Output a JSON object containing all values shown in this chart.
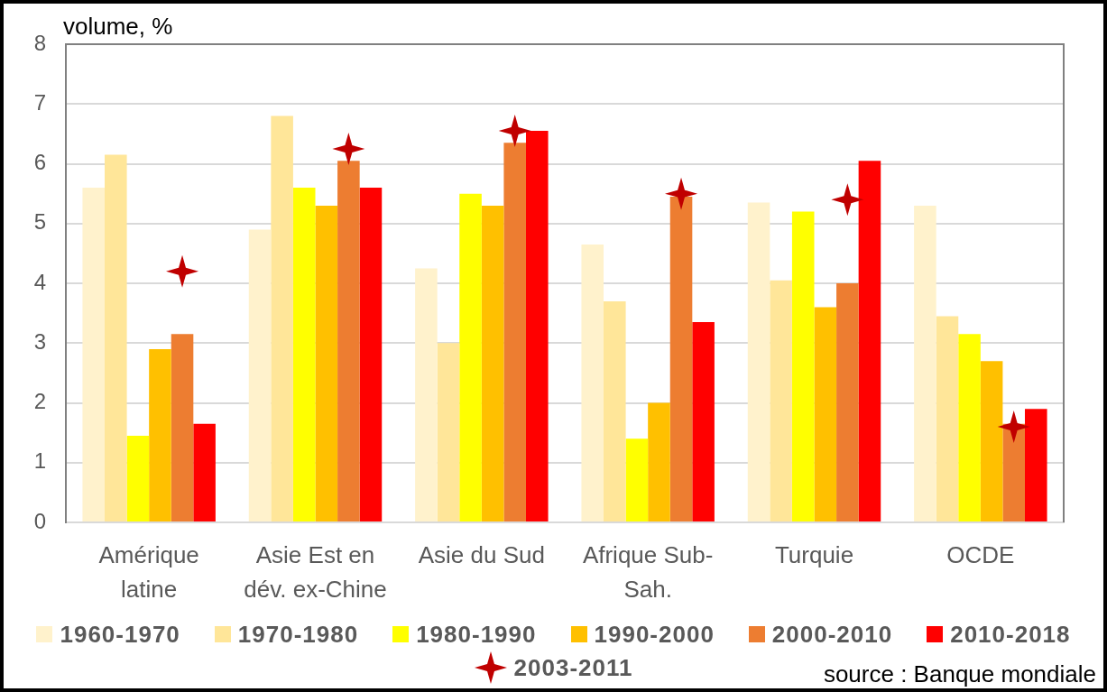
{
  "chart_data": {
    "type": "bar",
    "ylabel": "volume, %",
    "categories": [
      "Amérique latine",
      "Asie Est en dév. ex-Chine",
      "Asie du Sud",
      "Afrique Sub-Sah.",
      "Turquie",
      "OCDE"
    ],
    "series": [
      {
        "name": "1960-1970",
        "color": "#fff2cc",
        "values": [
          5.6,
          4.9,
          4.25,
          4.65,
          5.35,
          5.3
        ]
      },
      {
        "name": "1970-1980",
        "color": "#ffe699",
        "values": [
          6.15,
          6.8,
          3.0,
          3.7,
          4.05,
          3.45
        ]
      },
      {
        "name": "1980-1990",
        "color": "#ffff00",
        "values": [
          1.45,
          5.6,
          5.5,
          1.4,
          5.2,
          3.15
        ]
      },
      {
        "name": "1990-2000",
        "color": "#ffc000",
        "values": [
          2.9,
          5.3,
          5.3,
          2.0,
          3.6,
          2.7
        ]
      },
      {
        "name": "2000-2010",
        "color": "#ed7d31",
        "values": [
          3.15,
          6.05,
          6.35,
          5.45,
          4.0,
          1.65
        ]
      },
      {
        "name": "2010-2018",
        "color": "#ff0000",
        "values": [
          1.65,
          5.6,
          6.55,
          3.35,
          6.05,
          1.9
        ]
      },
      {
        "name": "2003-2011",
        "type": "scatter",
        "marker": "star",
        "color": "#c00000",
        "x": [
          "Amérique latine",
          "Asie Est en dév. ex-Chine",
          "Asie du Sud",
          "Afrique Sub-Sah.",
          "Turquie",
          "OCDE"
        ],
        "values": [
          4.2,
          6.25,
          6.55,
          5.5,
          5.4,
          1.6
        ]
      }
    ],
    "ylim": [
      0,
      8
    ],
    "yticks": [
      0,
      1,
      2,
      3,
      4,
      5,
      6,
      7,
      8
    ],
    "grid": "y",
    "legend": "bottom",
    "annotations": [
      "source : Banque mondiale"
    ]
  }
}
